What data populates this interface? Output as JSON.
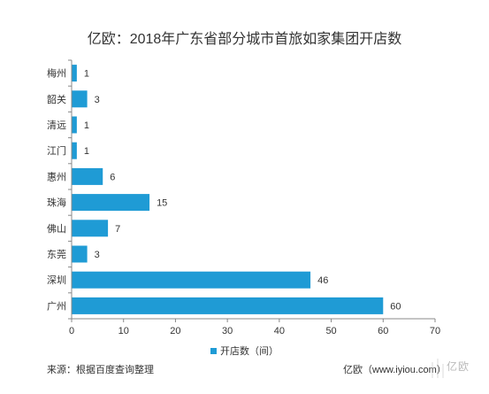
{
  "chart_data": {
    "type": "bar",
    "orientation": "horizontal",
    "title": "亿欧：2018年广东省部分城市首旅如家集团开店数",
    "categories": [
      "梅州",
      "韶关",
      "清远",
      "江门",
      "惠州",
      "珠海",
      "佛山",
      "东莞",
      "深圳",
      "广州"
    ],
    "series": [
      {
        "name": "开店数（间）",
        "values": [
          1,
          3,
          1,
          1,
          6,
          15,
          7,
          3,
          46,
          60
        ]
      }
    ],
    "xlim": [
      0,
      70
    ],
    "xticks": [
      0,
      10,
      20,
      30,
      40,
      50,
      60,
      70
    ],
    "grid": false,
    "legend_position": "bottom",
    "bar_color": "#1f9bd5"
  },
  "footer": {
    "source": "来源：根据百度查询整理",
    "brand": "亿欧（www.iyiou.com）",
    "watermark": "亿欧"
  }
}
